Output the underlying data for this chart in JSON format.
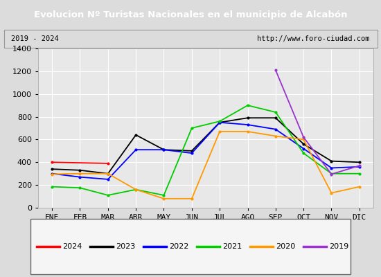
{
  "title": "Evolucion Nº Turistas Nacionales en el municipio de Alcabón",
  "subtitle_left": "2019 - 2024",
  "subtitle_right": "http://www.foro-ciudad.com",
  "title_bg_color": "#4472c4",
  "title_fg_color": "#ffffff",
  "plot_bg_color": "#e8e8e8",
  "outer_bg_color": "#dcdcdc",
  "months": [
    "ENE",
    "FEB",
    "MAR",
    "ABR",
    "MAY",
    "JUN",
    "JUL",
    "AGO",
    "SEP",
    "OCT",
    "NOV",
    "DIC"
  ],
  "ylim": [
    0,
    1400
  ],
  "yticks": [
    0,
    200,
    400,
    600,
    800,
    1000,
    1200,
    1400
  ],
  "series": {
    "2024": {
      "color": "#ff0000",
      "data": [
        400,
        null,
        390,
        null,
        null,
        null,
        null,
        null,
        null,
        null,
        null,
        null
      ]
    },
    "2023": {
      "color": "#000000",
      "data": [
        340,
        330,
        300,
        640,
        510,
        500,
        750,
        790,
        790,
        560,
        410,
        400
      ]
    },
    "2022": {
      "color": "#0000ff",
      "data": [
        300,
        270,
        250,
        510,
        510,
        480,
        750,
        730,
        690,
        520,
        350,
        360
      ]
    },
    "2021": {
      "color": "#00cc00",
      "data": [
        185,
        175,
        110,
        160,
        110,
        700,
        760,
        900,
        840,
        480,
        300,
        300
      ]
    },
    "2020": {
      "color": "#ff9900",
      "data": [
        295,
        300,
        300,
        160,
        80,
        80,
        670,
        670,
        630,
        600,
        130,
        185
      ]
    },
    "2019": {
      "color": "#9933cc",
      "data": [
        null,
        null,
        null,
        null,
        null,
        null,
        null,
        null,
        1210,
        620,
        295,
        370
      ]
    }
  },
  "legend_order": [
    "2024",
    "2023",
    "2022",
    "2021",
    "2020",
    "2019"
  ],
  "grid_color": "#ffffff",
  "tick_fontsize": 8
}
